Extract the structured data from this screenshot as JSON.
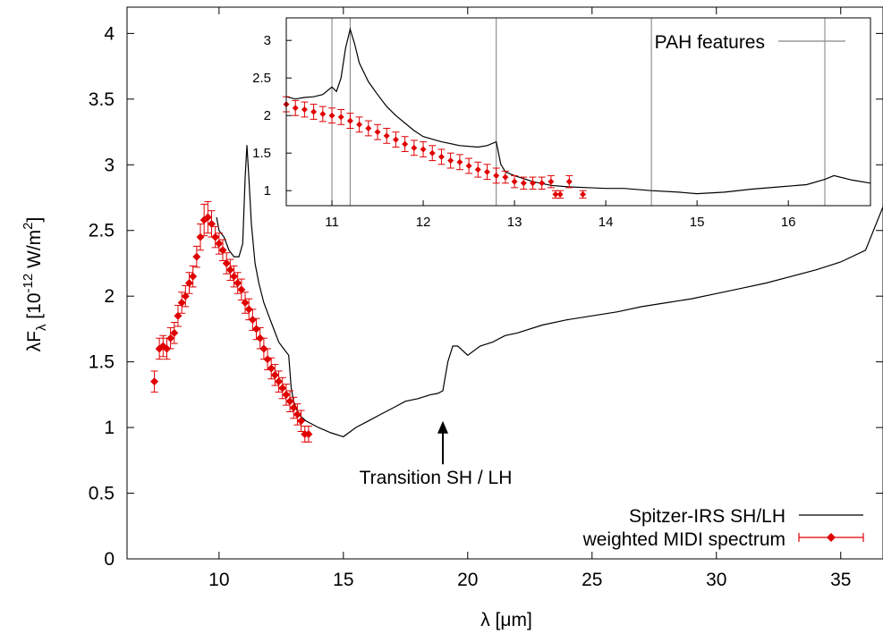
{
  "chart_data": [
    {
      "type": "line",
      "xlabel": "λ [μm]",
      "ylabel": "λF",
      "ylabel_sub": "λ",
      "ylabel_unit": " [10",
      "ylabel_exp": "-12",
      "ylabel_unit2": " W/m",
      "ylabel_exp2": "2",
      "ylabel_close": "]",
      "xlim": [
        6.3,
        36.7
      ],
      "ylim": [
        0,
        4.2
      ],
      "xticks": [
        10,
        15,
        20,
        25,
        30,
        35
      ],
      "yticks": [
        0,
        0.5,
        1,
        1.5,
        2,
        2.5,
        3,
        3.5,
        4
      ],
      "ytick_labels": [
        "0",
        "0.5",
        "1",
        "1.5",
        "2",
        "2.5",
        "3",
        "3.5",
        "4"
      ],
      "legend_position": "bottom-right",
      "annotation": {
        "text": "Transition SH / LH",
        "x": 19.0,
        "y_tip": 1.05,
        "y_tail": 0.72
      },
      "series": [
        {
          "name": "Spitzer-IRS SH/LH",
          "color": "#000000",
          "style": "line",
          "x": [
            9.9,
            10.0,
            10.2,
            10.4,
            10.6,
            10.8,
            10.95,
            11.05,
            11.12,
            11.2,
            11.3,
            11.45,
            11.6,
            11.8,
            12.0,
            12.2,
            12.4,
            12.6,
            12.8,
            12.9,
            13.0,
            13.2,
            13.5,
            14.0,
            14.5,
            15.0,
            15.5,
            16.0,
            16.5,
            17.0,
            17.5,
            18.0,
            18.5,
            18.8,
            19.0,
            19.2,
            19.4,
            19.6,
            20.0,
            20.5,
            21.0,
            21.5,
            22.0,
            23.0,
            24.0,
            25.0,
            26.0,
            27.0,
            28.0,
            29.0,
            30.0,
            31.0,
            32.0,
            33.0,
            34.0,
            35.0,
            36.0,
            36.7
          ],
          "y": [
            2.6,
            2.5,
            2.45,
            2.35,
            2.3,
            2.3,
            2.4,
            2.9,
            3.15,
            2.9,
            2.55,
            2.25,
            2.1,
            1.95,
            1.85,
            1.75,
            1.65,
            1.6,
            1.55,
            1.3,
            1.2,
            1.1,
            1.05,
            1.0,
            0.96,
            0.93,
            1.0,
            1.05,
            1.1,
            1.15,
            1.2,
            1.22,
            1.25,
            1.26,
            1.28,
            1.5,
            1.62,
            1.62,
            1.55,
            1.62,
            1.65,
            1.7,
            1.72,
            1.78,
            1.82,
            1.85,
            1.88,
            1.92,
            1.95,
            1.98,
            2.02,
            2.06,
            2.1,
            2.15,
            2.2,
            2.26,
            2.35,
            2.68
          ]
        },
        {
          "name": "weighted MIDI spectrum",
          "color": "#e00000",
          "style": "errorbar",
          "x": [
            7.4,
            7.6,
            7.75,
            7.9,
            8.05,
            8.2,
            8.35,
            8.5,
            8.65,
            8.8,
            8.95,
            9.1,
            9.25,
            9.4,
            9.55,
            9.7,
            9.85,
            10.0,
            10.15,
            10.3,
            10.45,
            10.6,
            10.75,
            10.9,
            11.05,
            11.2,
            11.35,
            11.5,
            11.65,
            11.8,
            11.95,
            12.1,
            12.25,
            12.4,
            12.55,
            12.7,
            12.85,
            13.0,
            13.15,
            13.3,
            13.45,
            13.6
          ],
          "y": [
            1.35,
            1.6,
            1.62,
            1.6,
            1.68,
            1.72,
            1.85,
            1.95,
            2.0,
            2.1,
            2.15,
            2.3,
            2.45,
            2.58,
            2.6,
            2.55,
            2.45,
            2.4,
            2.35,
            2.25,
            2.2,
            2.15,
            2.1,
            2.05,
            1.95,
            1.9,
            1.82,
            1.75,
            1.68,
            1.6,
            1.52,
            1.45,
            1.4,
            1.35,
            1.3,
            1.25,
            1.2,
            1.15,
            1.1,
            1.05,
            0.95,
            0.95
          ],
          "err": [
            0.08,
            0.08,
            0.08,
            0.08,
            0.08,
            0.08,
            0.08,
            0.08,
            0.08,
            0.08,
            0.08,
            0.08,
            0.1,
            0.12,
            0.12,
            0.1,
            0.08,
            0.08,
            0.08,
            0.08,
            0.08,
            0.08,
            0.08,
            0.08,
            0.08,
            0.08,
            0.08,
            0.08,
            0.08,
            0.08,
            0.08,
            0.08,
            0.08,
            0.08,
            0.08,
            0.08,
            0.08,
            0.08,
            0.08,
            0.08,
            0.06,
            0.06
          ]
        }
      ]
    },
    {
      "type": "line",
      "xlim": [
        10.5,
        16.9
      ],
      "ylim": [
        0.8,
        3.3
      ],
      "xticks": [
        11,
        12,
        13,
        14,
        15,
        16
      ],
      "yticks": [
        1,
        1.5,
        2,
        2.5,
        3
      ],
      "ytick_labels": [
        "1",
        "1.5",
        "2",
        "2.5",
        "3"
      ],
      "legend_position": "top-right",
      "vlines": [
        11.0,
        11.2,
        12.8,
        14.5,
        16.4
      ],
      "vline_name": "PAH features",
      "vline_color": "#888888",
      "series": [
        {
          "name": "Spitzer-IRS SH/LH",
          "color": "#000000",
          "style": "line",
          "x": [
            10.5,
            10.6,
            10.7,
            10.8,
            10.9,
            11.0,
            11.05,
            11.1,
            11.15,
            11.2,
            11.25,
            11.3,
            11.4,
            11.5,
            11.6,
            11.7,
            11.8,
            11.9,
            12.0,
            12.2,
            12.4,
            12.6,
            12.7,
            12.8,
            12.85,
            12.9,
            13.0,
            13.2,
            13.4,
            13.6,
            13.8,
            14.0,
            14.2,
            14.5,
            14.8,
            15.0,
            15.3,
            15.6,
            15.9,
            16.2,
            16.4,
            16.5,
            16.7,
            16.9
          ],
          "y": [
            2.25,
            2.22,
            2.24,
            2.25,
            2.28,
            2.38,
            2.32,
            2.5,
            2.9,
            3.15,
            2.95,
            2.7,
            2.45,
            2.28,
            2.12,
            2.0,
            1.9,
            1.8,
            1.72,
            1.65,
            1.6,
            1.58,
            1.6,
            1.65,
            1.35,
            1.25,
            1.2,
            1.12,
            1.07,
            1.05,
            1.04,
            1.03,
            1.03,
            1.0,
            0.98,
            0.96,
            0.98,
            1.02,
            1.05,
            1.08,
            1.15,
            1.2,
            1.14,
            1.1
          ]
        },
        {
          "name": "weighted MIDI spectrum",
          "color": "#e00000",
          "style": "errorbar",
          "x": [
            10.5,
            10.6,
            10.7,
            10.8,
            10.9,
            11.0,
            11.1,
            11.2,
            11.3,
            11.4,
            11.5,
            11.6,
            11.7,
            11.8,
            11.9,
            12.0,
            12.1,
            12.2,
            12.3,
            12.4,
            12.5,
            12.6,
            12.7,
            12.8,
            12.9,
            13.0,
            13.1,
            13.2,
            13.3,
            13.4,
            13.45,
            13.5,
            13.6,
            13.75
          ],
          "y": [
            2.15,
            2.1,
            2.08,
            2.05,
            2.02,
            2.0,
            1.98,
            1.93,
            1.88,
            1.83,
            1.78,
            1.73,
            1.68,
            1.62,
            1.57,
            1.55,
            1.5,
            1.45,
            1.4,
            1.38,
            1.33,
            1.28,
            1.25,
            1.2,
            1.18,
            1.12,
            1.1,
            1.1,
            1.1,
            1.12,
            0.95,
            0.95,
            1.12,
            0.95
          ],
          "err": [
            0.1,
            0.1,
            0.1,
            0.1,
            0.1,
            0.1,
            0.1,
            0.1,
            0.1,
            0.1,
            0.1,
            0.1,
            0.1,
            0.1,
            0.1,
            0.1,
            0.1,
            0.1,
            0.1,
            0.1,
            0.1,
            0.1,
            0.1,
            0.1,
            0.08,
            0.08,
            0.08,
            0.08,
            0.08,
            0.08,
            0.05,
            0.05,
            0.08,
            0.05
          ]
        }
      ]
    }
  ]
}
